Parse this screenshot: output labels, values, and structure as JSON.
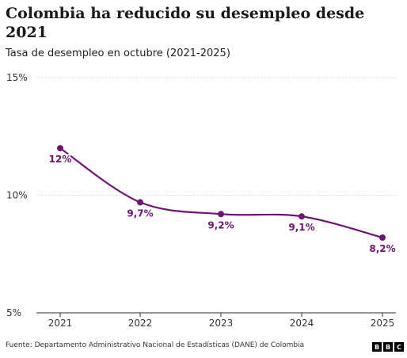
{
  "chart_data": {
    "type": "line",
    "title": "Colombia ha reducido su desempleo desde 2021",
    "subtitle": "Tasa de desempleo en octubre (2021-2025)",
    "x": [
      "2021",
      "2022",
      "2023",
      "2024",
      "2025"
    ],
    "series": [
      {
        "values": [
          12.0,
          9.7,
          9.2,
          9.1,
          8.2
        ],
        "labels": [
          "12%",
          "9,7%",
          "9,2%",
          "9,1%",
          "8,2%"
        ]
      }
    ],
    "ylim": [
      5,
      15
    ],
    "yticks": [
      {
        "value": 15,
        "label": "15%"
      },
      {
        "value": 10,
        "label": "10%"
      },
      {
        "value": 5,
        "label": "5%"
      }
    ],
    "grid": true,
    "color": "#6e1475",
    "source": "Fuente: Departamento Administrativo Nacional de Estadísticas (DANE) de Colombia"
  },
  "logo": {
    "letters": [
      "B",
      "B",
      "C"
    ]
  }
}
